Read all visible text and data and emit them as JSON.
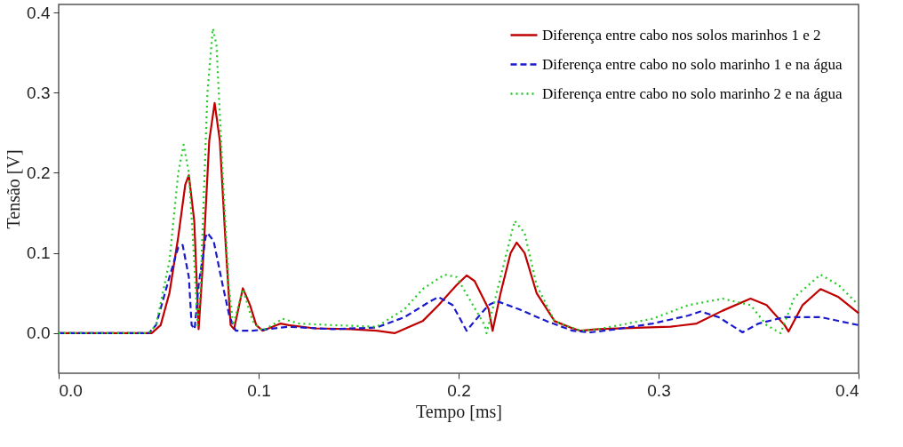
{
  "chart_data": {
    "type": "line",
    "xlabel": "Tempo [ms]",
    "ylabel": "Tensão [V]",
    "xlim": [
      0,
      0.4
    ],
    "xticks": [
      {
        "value": 0,
        "label": "0.0"
      },
      0.1,
      0.2,
      0.3,
      0.4
    ],
    "ylim": [
      -0.05,
      0.41
    ],
    "yticks": [
      {
        "value": 0,
        "label": "0.0"
      },
      0.1,
      0.2,
      0.3,
      0.4
    ],
    "grid": false,
    "legend": "top right",
    "marker": "none",
    "series": [
      {
        "name": "Diferença entre cabo nos solos marinhos 1 e 2",
        "color": "#c00000",
        "line_style": "solid",
        "x": [
          0,
          0.0465,
          0.051,
          0.0554,
          0.0598,
          0.0633,
          0.0651,
          0.0678,
          0.07,
          0.0722,
          0.0753,
          0.078,
          0.0806,
          0.0833,
          0.086,
          0.0877,
          0.0921,
          0.0957,
          0.0988,
          0.102,
          0.111,
          0.115,
          0.128,
          0.146,
          0.159,
          0.168,
          0.182,
          0.19,
          0.199,
          0.204,
          0.208,
          0.215,
          0.217,
          0.221,
          0.226,
          0.229,
          0.233,
          0.239,
          0.248,
          0.257,
          0.261,
          0.27,
          0.292,
          0.306,
          0.319,
          0.332,
          0.346,
          0.354,
          0.363,
          0.365,
          0.372,
          0.381,
          0.39,
          0.4
        ],
        "values": [
          0,
          0,
          0.01,
          0.05,
          0.12,
          0.185,
          0.197,
          0.14,
          0.005,
          0.09,
          0.24,
          0.287,
          0.24,
          0.12,
          0.01,
          0.005,
          0.056,
          0.035,
          0.01,
          0.003,
          0.012,
          0.01,
          0.006,
          0.005,
          0.003,
          0.0,
          0.015,
          0.035,
          0.06,
          0.072,
          0.065,
          0.03,
          0.003,
          0.05,
          0.1,
          0.113,
          0.1,
          0.05,
          0.015,
          0.006,
          0.003,
          0.005,
          0.007,
          0.008,
          0.012,
          0.028,
          0.043,
          0.035,
          0.01,
          0.002,
          0.035,
          0.055,
          0.045,
          0.025
        ]
      },
      {
        "name": "Diferença entre cabo no solo marinho 1 e na água",
        "color": "#1a1acc",
        "line_style": "dashed",
        "x": [
          0,
          0.045,
          0.0487,
          0.0554,
          0.0598,
          0.062,
          0.0651,
          0.0665,
          0.068,
          0.07,
          0.0735,
          0.0744,
          0.0775,
          0.082,
          0.0855,
          0.0886,
          0.097,
          0.115,
          0.137,
          0.159,
          0.173,
          0.186,
          0.19,
          0.197,
          0.204,
          0.208,
          0.215,
          0.219,
          0.23,
          0.244,
          0.257,
          0.266,
          0.279,
          0.297,
          0.315,
          0.321,
          0.33,
          0.342,
          0.35,
          0.363,
          0.381,
          0.4
        ],
        "values": [
          0,
          0,
          0.01,
          0.07,
          0.107,
          0.11,
          0.07,
          0.01,
          0.005,
          0.06,
          0.12,
          0.125,
          0.115,
          0.06,
          0.02,
          0.003,
          0.003,
          0.008,
          0.005,
          0.007,
          0.02,
          0.04,
          0.045,
          0.035,
          0.003,
          0.015,
          0.035,
          0.04,
          0.03,
          0.015,
          0.003,
          0.001,
          0.005,
          0.012,
          0.022,
          0.027,
          0.02,
          0.001,
          0.012,
          0.02,
          0.02,
          0.01
        ]
      },
      {
        "name": "Diferença entre cabo no solo marinho 2 e na água",
        "color": "#22cc22",
        "line_style": "dotted",
        "x": [
          0,
          0.045,
          0.0487,
          0.0554,
          0.0598,
          0.0625,
          0.0651,
          0.0678,
          0.0695,
          0.071,
          0.0744,
          0.0771,
          0.0789,
          0.082,
          0.085,
          0.0873,
          0.0921,
          0.097,
          0.102,
          0.112,
          0.12,
          0.137,
          0.159,
          0.173,
          0.182,
          0.193,
          0.199,
          0.206,
          0.213,
          0.214,
          0.219,
          0.226,
          0.228,
          0.233,
          0.239,
          0.248,
          0.261,
          0.27,
          0.297,
          0.315,
          0.332,
          0.346,
          0.354,
          0.361,
          0.368,
          0.381,
          0.39,
          0.4
        ],
        "values": [
          0,
          0,
          0.01,
          0.09,
          0.2,
          0.235,
          0.2,
          0.09,
          0.01,
          0.06,
          0.3,
          0.38,
          0.36,
          0.2,
          0.06,
          0.01,
          0.055,
          0.015,
          0.003,
          0.018,
          0.012,
          0.01,
          0.008,
          0.03,
          0.055,
          0.073,
          0.07,
          0.04,
          0.01,
          0.0,
          0.05,
          0.12,
          0.14,
          0.125,
          0.06,
          0.015,
          0.003,
          0.005,
          0.018,
          0.035,
          0.043,
          0.035,
          0.01,
          0.0,
          0.045,
          0.073,
          0.06,
          0.035
        ]
      }
    ]
  }
}
